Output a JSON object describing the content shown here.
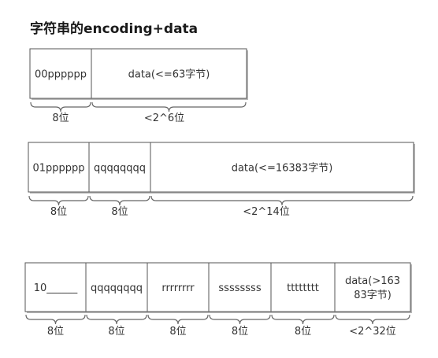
{
  "title": "字符串的encoding+data",
  "rows": [
    {
      "segments": [
        {
          "lines": [
            "00pppppp"
          ],
          "width_label": "8位"
        },
        {
          "lines": [
            "data(<=63字节)"
          ],
          "width_label": "<2^6位"
        }
      ]
    },
    {
      "segments": [
        {
          "lines": [
            "01pppppp"
          ],
          "width_label": "8位"
        },
        {
          "lines": [
            "qqqqqqqq"
          ],
          "width_label": "8位"
        },
        {
          "lines": [
            "data(<=16383字节)"
          ],
          "width_label": "<2^14位"
        }
      ]
    },
    {
      "segments": [
        {
          "lines": [
            "10______"
          ],
          "width_label": "8位"
        },
        {
          "lines": [
            "qqqqqqqq"
          ],
          "width_label": "8位"
        },
        {
          "lines": [
            "rrrrrrrr"
          ],
          "width_label": "8位"
        },
        {
          "lines": [
            "ssssssss"
          ],
          "width_label": "8位"
        },
        {
          "lines": [
            "tttttttt"
          ],
          "width_label": "8位"
        },
        {
          "lines": [
            "data(>163",
            "83字节)"
          ],
          "width_label": "<2^32位"
        }
      ]
    }
  ]
}
